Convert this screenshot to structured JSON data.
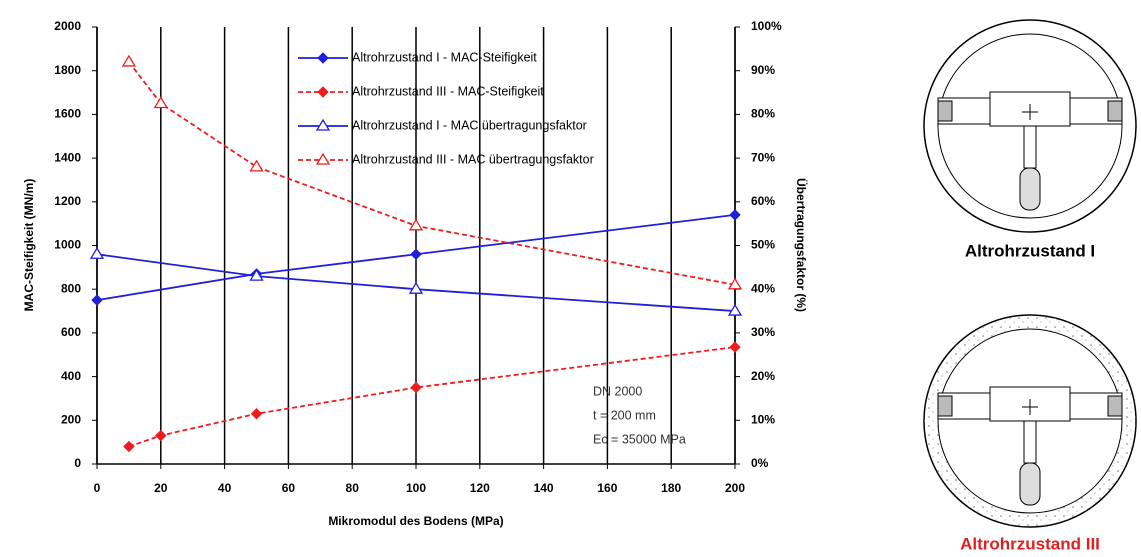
{
  "chart_data": {
    "type": "line",
    "ylabel": "MAC-Steifigkeit (MN/m)",
    "y2label": "Übertragungsfaktor (%)",
    "xlabel": "Mikromodul des Bodens (MPa)",
    "xlim": [
      0,
      200
    ],
    "xticks": [
      0,
      20,
      40,
      60,
      80,
      100,
      120,
      140,
      160,
      180,
      200
    ],
    "ylim": [
      0,
      2000
    ],
    "yticks": [
      0,
      200,
      400,
      600,
      800,
      1000,
      1200,
      1400,
      1600,
      1800,
      2000
    ],
    "y2lim": [
      0,
      100
    ],
    "y2ticks": [
      {
        "value": 0,
        "label": "0%"
      },
      {
        "value": 10,
        "label": "10%"
      },
      {
        "value": 20,
        "label": "20%"
      },
      {
        "value": 30,
        "label": "30%"
      },
      {
        "value": 40,
        "label": "40%"
      },
      {
        "value": 50,
        "label": "50%"
      },
      {
        "value": 60,
        "label": "60%"
      },
      {
        "value": 70,
        "label": "70%"
      },
      {
        "value": 80,
        "label": "80%"
      },
      {
        "value": 90,
        "label": "90%"
      },
      {
        "value": 100,
        "label": "100%"
      }
    ],
    "grid": "x",
    "series": [
      {
        "name": "Altrohrzustand I - MAC-Steifigkeit",
        "color": "#1f1fdc",
        "marker": "diamond",
        "dashed": false,
        "x": [
          0,
          50,
          100,
          200
        ],
        "values": [
          750,
          870,
          960,
          1140
        ]
      },
      {
        "name": "Altrohrzustand III - MAC-Steifigkeit",
        "color": "#ee1c1c",
        "marker": "diamond",
        "dashed": true,
        "x": [
          10,
          20,
          50,
          100,
          200
        ],
        "values": [
          80,
          130,
          230,
          350,
          535
        ]
      },
      {
        "name": "Altrohrzustand I - MAC übertragungsfaktor",
        "color": "#1f1fdc",
        "marker": "triangle",
        "dashed": false,
        "axis": "y2",
        "x": [
          0,
          50,
          100,
          200
        ],
        "values": [
          48,
          43,
          40,
          35
        ]
      },
      {
        "name": "Altrohrzustand III - MAC übertragungsfaktor",
        "color": "#ee1c1c",
        "marker": "triangle",
        "dashed": true,
        "axis": "y2",
        "x": [
          10,
          20,
          50,
          100,
          200
        ],
        "values": [
          92,
          82.5,
          68,
          54.5,
          41
        ]
      }
    ],
    "annotations": [
      "DN 2000",
      "t = 200 mm",
      "Ec = 35000 MPa"
    ]
  },
  "figures": [
    {
      "caption": "Altrohrzustand I"
    },
    {
      "caption": "Altrohrzustand III"
    }
  ]
}
